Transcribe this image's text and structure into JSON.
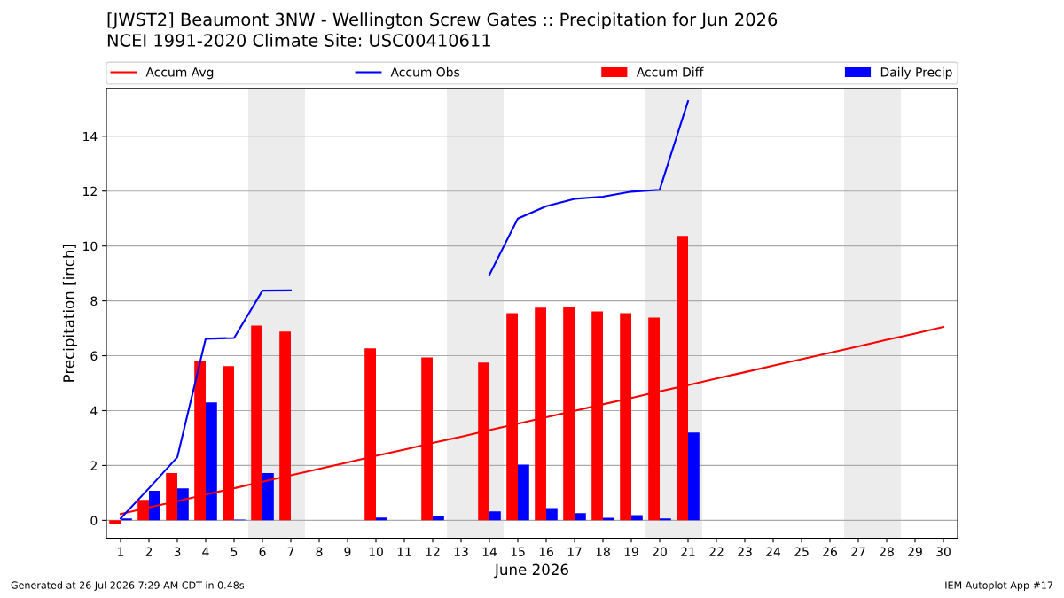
{
  "chart_data": {
    "type": "bar",
    "title": "[JWST2] Beaumont 3NW - Wellington Screw Gates :: Precipitation for Jun 2026",
    "subtitle": "NCEI 1991-2020 Climate Site: USC00410611",
    "xlabel": "June 2026",
    "ylabel": "Precipitation [inch]",
    "x": [
      1,
      2,
      3,
      4,
      5,
      6,
      7,
      8,
      9,
      10,
      11,
      12,
      13,
      14,
      15,
      16,
      17,
      18,
      19,
      20,
      21,
      22,
      23,
      24,
      25,
      26,
      27,
      28,
      29,
      30
    ],
    "series": [
      {
        "name": "Accum Avg",
        "type": "line",
        "color": "#ff0000",
        "values": [
          0.23,
          0.47,
          0.7,
          0.94,
          1.17,
          1.41,
          1.64,
          1.88,
          2.11,
          2.35,
          2.58,
          2.82,
          3.05,
          3.29,
          3.52,
          3.76,
          3.99,
          4.23,
          4.46,
          4.7,
          4.93,
          5.17,
          5.4,
          5.64,
          5.87,
          6.11,
          6.34,
          6.58,
          6.81,
          7.05
        ]
      },
      {
        "name": "Accum Obs",
        "type": "line",
        "color": "#0000ff",
        "values": [
          0.07,
          1.17,
          2.3,
          6.62,
          6.65,
          8.37,
          8.38,
          null,
          null,
          null,
          null,
          null,
          null,
          8.95,
          11.0,
          11.45,
          11.72,
          11.8,
          11.98,
          12.05,
          15.28,
          null,
          null,
          null,
          null,
          null,
          null,
          null,
          null,
          null
        ]
      },
      {
        "name": "Accum Diff",
        "color": "#ff0000",
        "values": [
          -0.13,
          0.75,
          1.72,
          5.82,
          5.62,
          7.1,
          6.88,
          null,
          null,
          6.27,
          null,
          5.94,
          null,
          5.75,
          7.55,
          7.75,
          7.78,
          7.62,
          7.55,
          7.39,
          10.37,
          null,
          null,
          null,
          null,
          null,
          null,
          null,
          null,
          null
        ]
      },
      {
        "name": "Daily Precip",
        "color": "#0000ff",
        "values": [
          0.07,
          1.08,
          1.17,
          4.3,
          0.03,
          1.72,
          0,
          0,
          0,
          0.1,
          0,
          0.15,
          0,
          0.33,
          2.03,
          0.45,
          0.26,
          0.09,
          0.19,
          0.07,
          3.2,
          null,
          null,
          null,
          null,
          null,
          null,
          null,
          null,
          null
        ]
      }
    ],
    "xlim": [
      0.5,
      30.5
    ],
    "xticks": [
      1,
      2,
      3,
      4,
      5,
      6,
      7,
      8,
      9,
      10,
      11,
      12,
      13,
      14,
      15,
      16,
      17,
      18,
      19,
      20,
      21,
      22,
      23,
      24,
      25,
      26,
      27,
      28,
      29,
      30
    ],
    "ylim": [
      -0.65,
      15.74
    ],
    "yticks": [
      0,
      2,
      4,
      6,
      8,
      10,
      12,
      14
    ],
    "bands": [
      {
        "axis": "x",
        "from": 5.5,
        "to": 7.5,
        "color": "#ececec"
      },
      {
        "axis": "x",
        "from": 12.5,
        "to": 14.5,
        "color": "#ececec"
      },
      {
        "axis": "x",
        "from": 19.5,
        "to": 21.5,
        "color": "#ececec"
      },
      {
        "axis": "x",
        "from": 26.5,
        "to": 28.5,
        "color": "#ececec"
      }
    ],
    "grid": "y",
    "legend": "top",
    "annotations": [
      "Generated at 26 Jul 2026 7:29 AM CDT in 0.48s",
      "IEM Autoplot App #17"
    ]
  }
}
